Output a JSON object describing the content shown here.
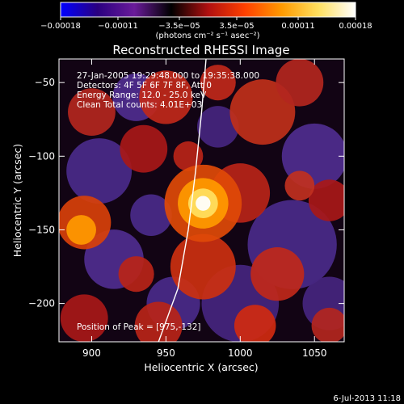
{
  "chart_data": {
    "type": "heatmap",
    "title": "Reconstructed RHESSI Image",
    "xlabel": "Heliocentric X (arcsec)",
    "ylabel": "Heliocentric Y (arcsec)",
    "xlim": [
      878,
      1070
    ],
    "ylim": [
      -226,
      -34
    ],
    "x_ticks": [
      900,
      950,
      1000,
      1050
    ],
    "y_ticks": [
      -50,
      -100,
      -150,
      -200
    ],
    "x_tick_labels": [
      "900",
      "950",
      "1000",
      "1050"
    ],
    "y_tick_labels": [
      "−50",
      "−100",
      "−150",
      "−200"
    ],
    "colorbar": {
      "min": -0.00018,
      "max": 0.00018,
      "ticks": [
        -0.00018,
        -0.00011,
        -3.5e-05,
        3.5e-05,
        0.00011,
        0.00018
      ],
      "tick_labels": [
        "−0.00018",
        "−0.00011",
        "−3.5e−05",
        "3.5e−05",
        "0.00011",
        "0.00018"
      ],
      "label": "(photons cm⁻² s⁻¹ asec⁻²)",
      "colors": [
        "#0000ff",
        "#2a0080",
        "#6a1b9a",
        "#000000",
        "#b01010",
        "#ff4000",
        "#ff9a00",
        "#ffe060",
        "#ffffff"
      ]
    },
    "annotations": {
      "time": "27-Jan-2005 19:29:48.000 to 19:35:38.000",
      "detectors": "Detectors: 4F 5F 6F 7F 8F, Att 0",
      "energy": "Energy Range: 12.0 - 25.0 keV",
      "clean": "Clean    Total counts: 4.01E+03",
      "peak": "Position of Peak = [975,-132]"
    },
    "peak": [
      975,
      -132
    ],
    "limb_curve": [
      [
        945,
        -226
      ],
      [
        958,
        -190
      ],
      [
        965,
        -150
      ],
      [
        970,
        -110
      ],
      [
        974,
        -70
      ],
      [
        977,
        -34
      ]
    ],
    "footer_date": "6-Jul-2013 11:18",
    "grid": false
  }
}
